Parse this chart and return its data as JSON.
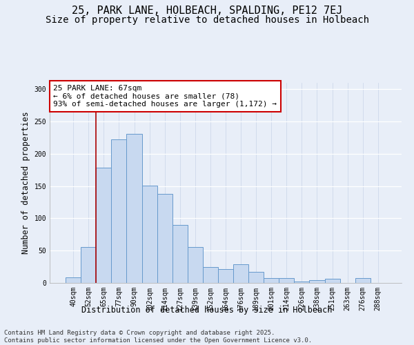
{
  "title_line1": "25, PARK LANE, HOLBEACH, SPALDING, PE12 7EJ",
  "title_line2": "Size of property relative to detached houses in Holbeach",
  "xlabel": "Distribution of detached houses by size in Holbeach",
  "ylabel": "Number of detached properties",
  "categories": [
    "40sqm",
    "52sqm",
    "65sqm",
    "77sqm",
    "90sqm",
    "102sqm",
    "114sqm",
    "127sqm",
    "139sqm",
    "152sqm",
    "164sqm",
    "176sqm",
    "189sqm",
    "201sqm",
    "214sqm",
    "226sqm",
    "238sqm",
    "251sqm",
    "263sqm",
    "276sqm",
    "288sqm"
  ],
  "values": [
    9,
    56,
    179,
    222,
    231,
    151,
    138,
    90,
    56,
    25,
    21,
    29,
    17,
    8,
    7,
    2,
    4,
    6,
    0,
    8,
    0
  ],
  "bar_color": "#c8d9f0",
  "bar_edge_color": "#6699cc",
  "background_color": "#e8eef8",
  "grid_color": "#d0d8e8",
  "annotation_text": "25 PARK LANE: 67sqm\n← 6% of detached houses are smaller (78)\n93% of semi-detached houses are larger (1,172) →",
  "annotation_box_color": "#ffffff",
  "annotation_box_edge_color": "#cc0000",
  "vline_color": "#aa0000",
  "vline_pos": 2,
  "ylim": [
    0,
    310
  ],
  "yticks": [
    0,
    50,
    100,
    150,
    200,
    250,
    300
  ],
  "footnote": "Contains HM Land Registry data © Crown copyright and database right 2025.\nContains public sector information licensed under the Open Government Licence v3.0.",
  "title_fontsize": 11,
  "subtitle_fontsize": 10,
  "axis_label_fontsize": 8.5,
  "tick_fontsize": 7,
  "annotation_fontsize": 8,
  "footnote_fontsize": 6.5
}
